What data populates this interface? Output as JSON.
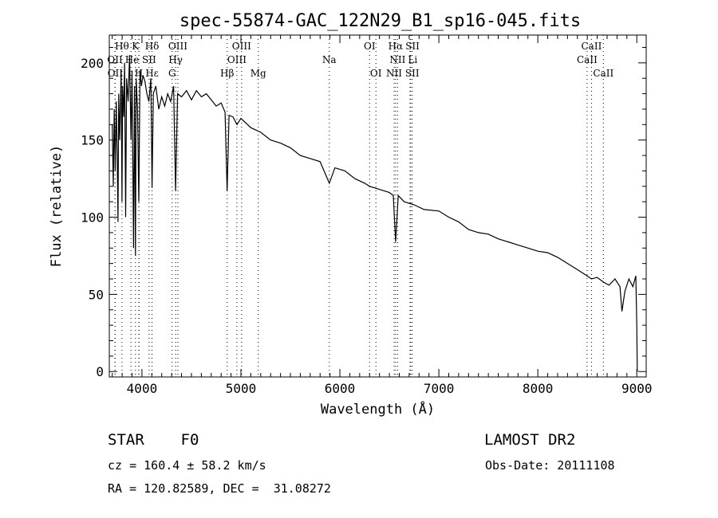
{
  "chart_data": {
    "type": "line",
    "title": "spec-55874-GAC_122N29_B1_sp16-045.fits",
    "xlabel": "Wavelength (Å)",
    "ylabel": "Flux (relative)",
    "xlim": [
      3670,
      9095
    ],
    "ylim": [
      -3.5,
      218
    ],
    "xticks": [
      4000,
      5000,
      6000,
      7000,
      8000,
      9000
    ],
    "yticks": [
      0,
      50,
      100,
      150,
      200
    ],
    "grid": false,
    "series": [
      {
        "name": "spectrum",
        "x": [
          3700,
          3710,
          3720,
          3730,
          3740,
          3750,
          3758,
          3765,
          3775,
          3790,
          3798,
          3805,
          3815,
          3825,
          3835,
          3845,
          3860,
          3875,
          3889,
          3900,
          3915,
          3925,
          3934,
          3942,
          3955,
          3968,
          3980,
          3995,
          4010,
          4030,
          4050,
          4070,
          4090,
          4102,
          4115,
          4140,
          4170,
          4200,
          4230,
          4260,
          4290,
          4320,
          4340,
          4360,
          4400,
          4450,
          4500,
          4550,
          4600,
          4650,
          4700,
          4750,
          4800,
          4840,
          4861,
          4880,
          4920,
          4960,
          5000,
          5100,
          5200,
          5300,
          5400,
          5500,
          5600,
          5700,
          5800,
          5893,
          5950,
          6050,
          6150,
          6250,
          6300,
          6400,
          6500,
          6540,
          6563,
          6590,
          6650,
          6750,
          6850,
          7000,
          7100,
          7200,
          7300,
          7400,
          7500,
          7600,
          7700,
          7800,
          7900,
          8000,
          8100,
          8200,
          8300,
          8400,
          8498,
          8542,
          8600,
          8662,
          8720,
          8780,
          8830,
          8850,
          8880,
          8920,
          8960,
          8990,
          9000,
          9005
        ],
        "y": [
          160,
          120,
          170,
          130,
          175,
          140,
          97,
          180,
          150,
          195,
          110,
          185,
          165,
          200,
          100,
          190,
          175,
          205,
          150,
          195,
          80,
          185,
          75,
          190,
          170,
          110,
          195,
          185,
          192,
          188,
          180,
          175,
          190,
          119,
          180,
          185,
          170,
          178,
          172,
          180,
          175,
          185,
          117,
          180,
          178,
          182,
          176,
          182,
          178,
          180,
          176,
          172,
          174,
          168,
          117,
          166,
          165,
          160,
          164,
          158,
          155,
          150,
          148,
          145,
          140,
          138,
          136,
          122,
          132,
          130,
          125,
          122,
          120,
          118,
          116,
          114,
          84,
          114,
          110,
          108,
          105,
          104,
          100,
          97,
          92,
          90,
          89,
          86,
          84,
          82,
          80,
          78,
          77,
          74,
          70,
          66,
          62,
          60,
          61,
          58,
          56,
          60,
          55,
          39,
          52,
          60,
          55,
          62,
          30,
          0
        ]
      }
    ],
    "line_labels": [
      {
        "text": "Hθ",
        "wl": 3798,
        "row": 1
      },
      {
        "text": "K",
        "wl": 3934,
        "row": 1
      },
      {
        "text": "Hδ",
        "wl": 4102,
        "row": 1
      },
      {
        "text": "OIII",
        "wl": 4363,
        "row": 1
      },
      {
        "text": "OIII",
        "wl": 5007,
        "row": 1
      },
      {
        "text": "OI",
        "wl": 6300,
        "row": 1
      },
      {
        "text": "Hα",
        "wl": 6563,
        "row": 1
      },
      {
        "text": "SII",
        "wl": 6716,
        "row": 1
      },
      {
        "text": "CaII",
        "wl": 8542,
        "row": 1
      },
      {
        "text": "OII",
        "wl": 3727,
        "row": 2
      },
      {
        "text": "He",
        "wl": 3889,
        "row": 2
      },
      {
        "text": "SII",
        "wl": 4072,
        "row": 2
      },
      {
        "text": "Hγ",
        "wl": 4340,
        "row": 2
      },
      {
        "text": "OIII",
        "wl": 4959,
        "row": 2
      },
      {
        "text": "Na",
        "wl": 5893,
        "row": 2
      },
      {
        "text": "NII",
        "wl": 6583,
        "row": 2
      },
      {
        "text": "Li",
        "wl": 6708,
        "row": 2
      },
      {
        "text": "CaII",
        "wl": 8498,
        "row": 2
      },
      {
        "text": "OII",
        "wl": 3729,
        "row": 3
      },
      {
        "text": "Hε",
        "wl": 3970,
        "row": 3
      },
      {
        "text": "H",
        "wl": 3968,
        "row": 3
      },
      {
        "text": "G",
        "wl": 4305,
        "row": 3
      },
      {
        "text": "Hβ",
        "wl": 4861,
        "row": 3
      },
      {
        "text": "Mg",
        "wl": 5175,
        "row": 3
      },
      {
        "text": "OI",
        "wl": 6364,
        "row": 3
      },
      {
        "text": "NII",
        "wl": 6548,
        "row": 3
      },
      {
        "text": "SII",
        "wl": 6731,
        "row": 3
      },
      {
        "text": "CaII",
        "wl": 8662,
        "row": 3
      }
    ]
  },
  "info": {
    "class_label": "STAR",
    "subclass": "F0",
    "survey": "LAMOST DR2",
    "cz": "cz = 160.4 ± 58.2 km/s",
    "obs_date": "Obs-Date: 20111108",
    "coords": "RA = 120.82589, DEC =  31.08272"
  }
}
